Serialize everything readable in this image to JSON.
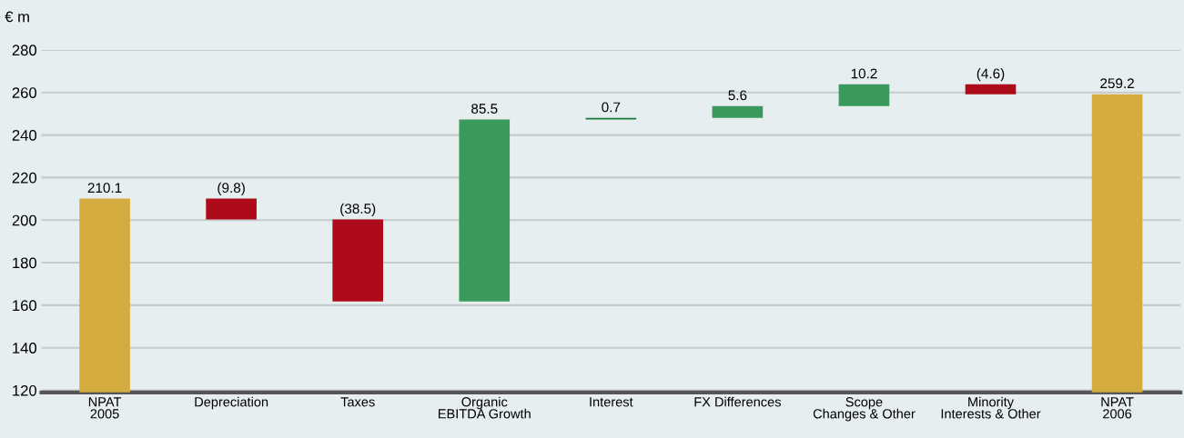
{
  "chart_data": {
    "type": "bar",
    "ylabel": "€ m",
    "categories": [
      "NPAT\n2005",
      "Depreciation",
      "Taxes",
      "Organic\nEBITDA Growth",
      "Interest",
      "FX Differences",
      "Scope\nChanges & Other",
      "Minority\nInterests & Other",
      "NPAT\n2006"
    ],
    "values": [
      210.1,
      -9.8,
      -38.5,
      85.5,
      0.7,
      5.6,
      10.2,
      -4.6,
      259.2
    ],
    "base": [
      null,
      210.1,
      200.3,
      161.8,
      247.3,
      248.0,
      253.6,
      263.8,
      null
    ],
    "colors": [
      "#d4ab3f",
      "#ad0a1a",
      "#ad0a1a",
      "#3a9a5b",
      "#137a3a",
      "#3a9a5b",
      "#3a9a5b",
      "#ad0a1a",
      "#d4ab3f"
    ],
    "value_labels": [
      "210.1",
      "(9.8)",
      "(38.5)",
      "85.5",
      "0.7",
      "5.6",
      "10.2",
      "(4.6)",
      "259.2"
    ],
    "ylim": [
      119,
      280
    ],
    "yticks": [
      120,
      140,
      160,
      180,
      200,
      220,
      240,
      260,
      280
    ],
    "grid": "y"
  }
}
